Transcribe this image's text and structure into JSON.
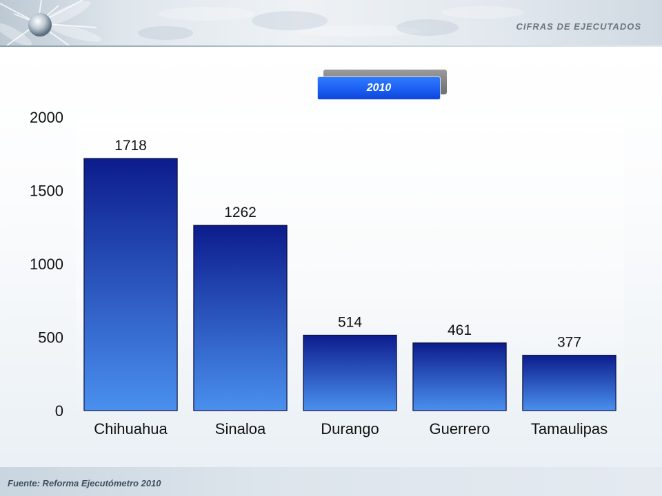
{
  "header": {
    "title": "CIFRAS DE EJECUTADOS"
  },
  "year_badge": "2010",
  "footer": {
    "source": "Fuente: Reforma Ejecutómetro 2010"
  },
  "colors": {
    "bar_top": "#0c1c8c",
    "bar_bottom": "#4a90ee",
    "year_badge": "#1a5cf0"
  },
  "chart_data": {
    "type": "bar",
    "title": "",
    "xlabel": "",
    "ylabel": "",
    "categories": [
      "Chihuahua",
      "Sinaloa",
      "Durango",
      "Guerrero",
      "Tamaulipas"
    ],
    "values": [
      1718,
      1262,
      514,
      461,
      377
    ],
    "data_labels": [
      "1718",
      "1262",
      "514",
      "461",
      "377"
    ],
    "ylim": [
      0,
      2000
    ],
    "yticks": [
      0,
      500,
      1000,
      1500,
      2000
    ],
    "grid": false,
    "legend": "none"
  }
}
